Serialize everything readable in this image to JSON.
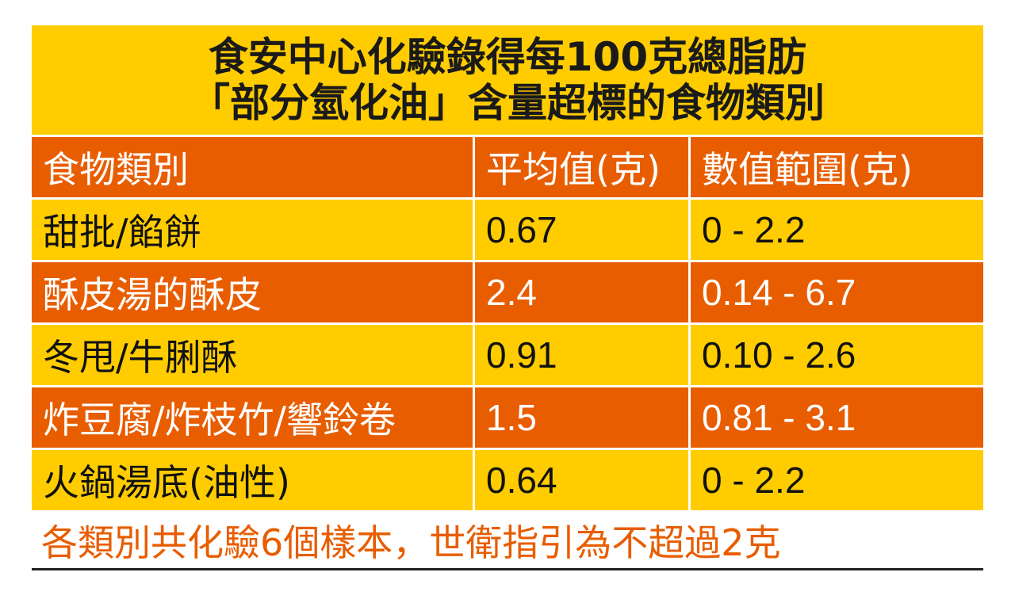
{
  "title": {
    "line1": "食安中心化驗錄得每100克總脂肪",
    "line2": "「部分氫化油」含量超標的食物類別"
  },
  "colors": {
    "yellow": "#ffcc00",
    "orange": "#e85d00",
    "note_text": "#e85d00"
  },
  "chart_data": {
    "type": "table",
    "title": "食安中心化驗錄得每100克總脂肪「部分氫化油」含量超標的食物類別",
    "columns": [
      "食物類別",
      "平均值(克)",
      "數值範圍(克)"
    ],
    "rows": [
      [
        "甜批/餡餅",
        "0.67",
        "0 - 2.2"
      ],
      [
        "酥皮湯的酥皮",
        "2.4",
        "0.14 - 6.7"
      ],
      [
        "冬甩/牛脷酥",
        "0.91",
        "0.10 - 2.6"
      ],
      [
        "炸豆腐/炸枝竹/響鈴卷",
        "1.5",
        "0.81 - 3.1"
      ],
      [
        "火鍋湯底(油性)",
        "0.64",
        "0 - 2.2"
      ]
    ],
    "note": "各類別共化驗6個樣本，世衛指引為不超過2克"
  }
}
